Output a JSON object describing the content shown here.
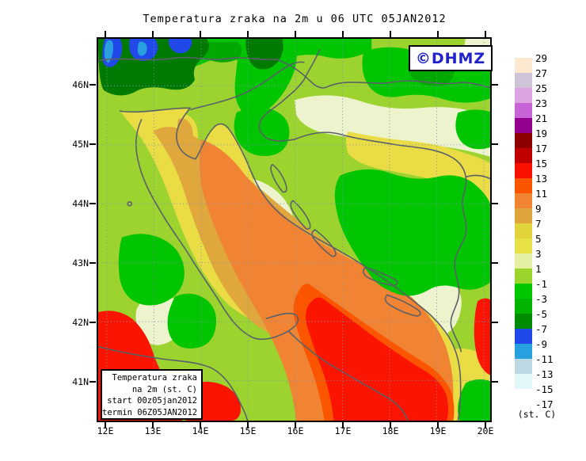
{
  "title": "Temperatura zraka na 2m u 06 UTC 05JAN2012",
  "watermark": {
    "label": "©DHMZ"
  },
  "info_box": {
    "line1": "Temperatura zraka",
    "line2": "na 2m (st. C)",
    "line3": "start 00z05jan2012",
    "line4": "termin 06Z05JAN2012"
  },
  "axes": {
    "lat_ticks": [
      "46N",
      "45N",
      "44N",
      "43N",
      "42N",
      "41N"
    ],
    "lon_ticks": [
      "12E",
      "13E",
      "14E",
      "15E",
      "16E",
      "17E",
      "18E",
      "19E",
      "20E"
    ]
  },
  "colorbar": {
    "unit_label": "(st. C)",
    "tick_labels": [
      "29",
      "27",
      "25",
      "23",
      "21",
      "19",
      "17",
      "15",
      "13",
      "11",
      "9",
      "7",
      "5",
      "3",
      "1",
      "-1",
      "-3",
      "-5",
      "-7",
      "-9",
      "-11",
      "-13",
      "-15",
      "-17"
    ],
    "colors": [
      "#FBE8CF",
      "#CFC4D7",
      "#DDA3E0",
      "#C763D6",
      "#93008F",
      "#8F0000",
      "#C00000",
      "#FB1000",
      "#FB5500",
      "#F08433",
      "#DFA43C",
      "#E0D33C",
      "#E8E047",
      "#E5EFA3",
      "#9BD42A",
      "#00C800",
      "#00B400",
      "#008C00",
      "#2148E8",
      "#28A0E0",
      "#BCD9E3",
      "#E2F8F8",
      "#FFFFFF"
    ]
  },
  "palette": {
    "frame": "#000000",
    "grid": "#8090B8",
    "line": "#5A6068",
    "watermark_blue": "#2222CC",
    "base_green": "#9CD32F",
    "pale": "#EDF3CC",
    "green": "#00C500",
    "mid_green": "#00A800",
    "dark_green": "#007A00",
    "blue": "#2148E8",
    "light_blue": "#28A0E0",
    "yellow": "#E9DC45",
    "gold": "#E0A83C",
    "orange": "#F08433",
    "orange_red": "#FB5500",
    "red": "#FB1400"
  }
}
